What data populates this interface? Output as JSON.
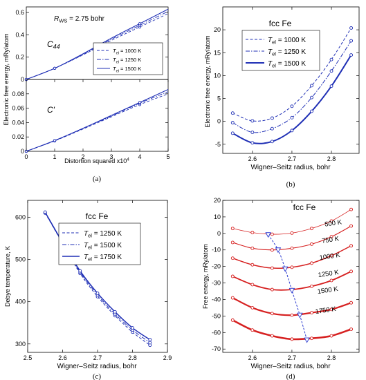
{
  "chart_data": [
    {
      "id": "a",
      "type": "line",
      "panel_label": "(a)",
      "annotation": "R_WS = 2.75 bohr",
      "annotation_main": "R",
      "annotation_sub": "WS",
      "annotation_rest": " = 2.75 bohr",
      "xlabel": "Distortion squared x10",
      "xlabel_sup": "4",
      "ylabel": "Electronic free energy, mRy/atom",
      "xlim": [
        0,
        5
      ],
      "x_ticks": [
        "0",
        "1",
        "2",
        "3",
        "4",
        "5"
      ],
      "legend_placement": "inside-right",
      "subplots": [
        {
          "label": "C44",
          "label_main": "C",
          "label_sub": "44",
          "ylim": [
            0,
            0.65
          ],
          "y_ticks": [
            "0",
            "0.2",
            "0.4",
            "0.6"
          ],
          "markers_x": [
            0,
            1,
            4
          ],
          "series": [
            {
              "name": "T_el = 1000 K",
              "name_main": "T",
              "name_sub": "el",
              "name_rest": " = 1000 K",
              "style": "dashed",
              "x": [
                0,
                1,
                2,
                3,
                4,
                5
              ],
              "values": [
                0,
                0.1,
                0.22,
                0.35,
                0.47,
                0.59
              ]
            },
            {
              "name": "T_el = 1250 K",
              "name_main": "T",
              "name_sub": "el",
              "name_rest": " = 1250 K",
              "style": "dashdot",
              "x": [
                0,
                1,
                2,
                3,
                4,
                5
              ],
              "values": [
                0,
                0.1,
                0.225,
                0.36,
                0.485,
                0.61
              ]
            },
            {
              "name": "T_el = 1500 K",
              "name_main": "T",
              "name_sub": "el",
              "name_rest": " = 1500 K",
              "style": "solid",
              "x": [
                0,
                1,
                2,
                3,
                4,
                5
              ],
              "values": [
                0,
                0.1,
                0.23,
                0.37,
                0.5,
                0.63
              ]
            }
          ]
        },
        {
          "label": "C'",
          "label_main": "C'",
          "label_sub": "",
          "ylim": [
            0,
            0.1
          ],
          "y_ticks": [
            "0",
            "0.02",
            "0.04",
            "0.06",
            "0.08"
          ],
          "markers_x": [
            0,
            1,
            4
          ],
          "series": [
            {
              "name": "T_el = 1000 K",
              "style": "dashed",
              "x": [
                0,
                1,
                2,
                3,
                4,
                5
              ],
              "values": [
                0,
                0.0145,
                0.031,
                0.048,
                0.065,
                0.08
              ]
            },
            {
              "name": "T_el = 1250 K",
              "style": "dashdot",
              "x": [
                0,
                1,
                2,
                3,
                4,
                5
              ],
              "values": [
                0,
                0.0148,
                0.032,
                0.049,
                0.067,
                0.083
              ]
            },
            {
              "name": "T_el = 1500 K",
              "style": "solid",
              "x": [
                0,
                1,
                2,
                3,
                4,
                5
              ],
              "values": [
                0,
                0.015,
                0.032,
                0.05,
                0.068,
                0.086
              ]
            }
          ]
        }
      ]
    },
    {
      "id": "b",
      "type": "line",
      "panel_label": "(b)",
      "title": "fcc Fe",
      "xlabel": "Wigner–Seitz radius, bohr",
      "ylabel": "Electronic free energy, mRy/atom",
      "xlim": [
        2.525,
        2.87
      ],
      "ylim": [
        -7,
        25
      ],
      "x_ticks": [
        "2.6",
        "2.7",
        "2.8"
      ],
      "y_ticks": [
        "-5",
        "0",
        "5",
        "10",
        "15",
        "20"
      ],
      "legend_placement": "top-left",
      "series": [
        {
          "name": "T_el = 1000 K",
          "name_main": "T",
          "name_sub": "el",
          "name_rest": " = 1000 K",
          "style": "dashed",
          "x": [
            2.55,
            2.6,
            2.65,
            2.7,
            2.75,
            2.8,
            2.85
          ],
          "values": [
            1.8,
            0.1,
            0.7,
            3.3,
            7.8,
            13.5,
            20.4
          ]
        },
        {
          "name": "T_el = 1250 K",
          "name_main": "T",
          "name_sub": "el",
          "name_rest": " = 1250 K",
          "style": "dashdot",
          "x": [
            2.55,
            2.6,
            2.65,
            2.7,
            2.75,
            2.8,
            2.85
          ],
          "values": [
            -0.3,
            -2.4,
            -1.6,
            0.8,
            5.2,
            11.0,
            17.6
          ]
        },
        {
          "name": "T_el = 1500 K",
          "name_main": "T",
          "name_sub": "el",
          "name_rest": " = 1500 K",
          "style": "solid",
          "x": [
            2.55,
            2.6,
            2.65,
            2.7,
            2.75,
            2.8,
            2.85
          ],
          "values": [
            -2.6,
            -4.7,
            -4.4,
            -2.0,
            2.2,
            7.7,
            14.5
          ]
        }
      ]
    },
    {
      "id": "c",
      "type": "line",
      "panel_label": "(c)",
      "title": "fcc Fe",
      "xlabel": "Wigner–Seitz radius, bohr",
      "ylabel": "Debye temperature, K",
      "xlim": [
        2.5,
        2.9
      ],
      "ylim": [
        280,
        640
      ],
      "x_ticks": [
        "2.5",
        "2.6",
        "2.7",
        "2.8",
        "2.9"
      ],
      "y_ticks": [
        "300",
        "400",
        "500",
        "600"
      ],
      "legend_placement": "top-right",
      "series": [
        {
          "name": "T_el = 1250 K",
          "name_main": "T",
          "name_sub": "el",
          "name_rest": " = 1250 K",
          "style": "dashed",
          "x": [
            2.55,
            2.6,
            2.65,
            2.7,
            2.75,
            2.8,
            2.85
          ],
          "values": [
            610,
            538,
            467,
            412,
            367,
            328,
            297
          ]
        },
        {
          "name": "T_el = 1500 K",
          "name_main": "T",
          "name_sub": "el",
          "name_rest": " = 1500 K",
          "style": "dashdot",
          "x": [
            2.55,
            2.6,
            2.65,
            2.7,
            2.75,
            2.8,
            2.85
          ],
          "values": [
            611,
            539,
            470,
            416,
            371,
            333,
            303
          ]
        },
        {
          "name": "T_el = 1750 K",
          "name_main": "T",
          "name_sub": "el",
          "name_rest": " = 1750 K",
          "style": "solid",
          "x": [
            2.55,
            2.6,
            2.65,
            2.7,
            2.75,
            2.8,
            2.85
          ],
          "values": [
            612,
            540,
            473,
            420,
            376,
            338,
            310
          ]
        }
      ]
    },
    {
      "id": "d",
      "type": "line",
      "panel_label": "(d)",
      "title": "fcc Fe",
      "xlabel": "Wigner–Seitz radius, bohr",
      "ylabel": "Free energy, mRy/atom",
      "xlim": [
        2.525,
        2.87
      ],
      "ylim": [
        -72,
        20
      ],
      "x_ticks": [
        "2.6",
        "2.7",
        "2.8"
      ],
      "y_ticks": [
        "20",
        "10",
        "0",
        "-10",
        "-20",
        "-30",
        "-40",
        "-50",
        "-60",
        "-70"
      ],
      "colors": {
        "series": "#d62020",
        "minimum": "#2a3ad0"
      },
      "x": [
        2.55,
        2.6,
        2.65,
        2.7,
        2.75,
        2.8,
        2.85
      ],
      "series": [
        {
          "name": "500 K",
          "values": [
            3,
            0.5,
            -0.5,
            0.2,
            3,
            7.5,
            14.5
          ]
        },
        {
          "name": "750 K",
          "values": [
            -5.5,
            -9,
            -10,
            -9,
            -6.5,
            -2,
            4.5
          ]
        },
        {
          "name": "1000 K",
          "values": [
            -15,
            -19,
            -21,
            -20.5,
            -18,
            -13.5,
            -7.5
          ]
        },
        {
          "name": "1250 K",
          "values": [
            -26,
            -31,
            -34,
            -34,
            -32,
            -28.5,
            -23
          ]
        },
        {
          "name": "1500 K",
          "values": [
            -39,
            -45,
            -48.5,
            -49.5,
            -48,
            -46,
            -42
          ]
        },
        {
          "name": "1750 K",
          "values": [
            -52.5,
            -58.5,
            -62,
            -64,
            -63.5,
            -62,
            -58
          ]
        }
      ],
      "minima": {
        "x": [
          2.64,
          2.665,
          2.683,
          2.7,
          2.72,
          2.738
        ],
        "values": [
          -0.8,
          -10,
          -21.5,
          -34.5,
          -49.5,
          -64.5
        ]
      }
    }
  ]
}
